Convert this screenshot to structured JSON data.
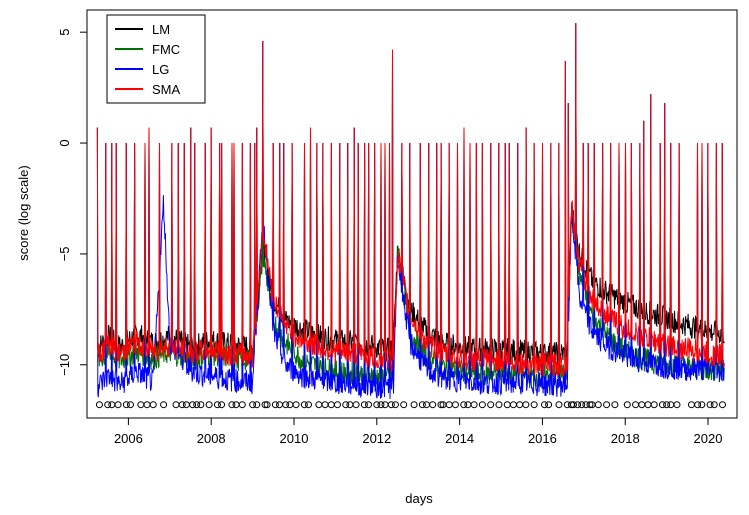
{
  "chart_data": {
    "type": "line",
    "title": "",
    "xlabel": "days",
    "ylabel": "score (log scale)",
    "xlim": [
      2005.0,
      2020.7
    ],
    "ylim": [
      -12.4,
      6.0
    ],
    "x_ticks": [
      2006,
      2008,
      2010,
      2012,
      2014,
      2016,
      2018,
      2020
    ],
    "x_tick_labels": [
      "2006",
      "2008",
      "2010",
      "2012",
      "2014",
      "2016",
      "2018",
      "2020"
    ],
    "y_ticks": [
      -10,
      -5,
      0,
      5
    ],
    "y_tick_labels": [
      "−10",
      "−5",
      "0",
      "5"
    ],
    "legend_position": "top-left",
    "series": [
      {
        "name": "LM",
        "color": "#000000",
        "points": [
          [
            2005.25,
            -9.3
          ],
          [
            2005.5,
            -8.7
          ],
          [
            2005.8,
            -9.2
          ],
          [
            2006.2,
            -8.6
          ],
          [
            2006.6,
            -9.0
          ],
          [
            2007.0,
            -8.7
          ],
          [
            2007.5,
            -9.2
          ],
          [
            2008.0,
            -8.9
          ],
          [
            2008.5,
            -9.1
          ],
          [
            2009.0,
            -9.2
          ],
          [
            2009.25,
            -4.5
          ],
          [
            2009.5,
            -7.0
          ],
          [
            2009.8,
            -8.0
          ],
          [
            2010.2,
            -8.4
          ],
          [
            2010.6,
            -8.7
          ],
          [
            2011.0,
            -8.9
          ],
          [
            2011.5,
            -9.0
          ],
          [
            2012.0,
            -9.2
          ],
          [
            2012.4,
            -9.4
          ],
          [
            2012.5,
            -4.8
          ],
          [
            2012.8,
            -7.5
          ],
          [
            2013.2,
            -8.5
          ],
          [
            2013.6,
            -9.0
          ],
          [
            2014.0,
            -9.2
          ],
          [
            2014.5,
            -9.3
          ],
          [
            2015.0,
            -9.3
          ],
          [
            2015.5,
            -9.4
          ],
          [
            2016.0,
            -9.5
          ],
          [
            2016.6,
            -9.5
          ],
          [
            2016.7,
            -3.0
          ],
          [
            2016.9,
            -5.0
          ],
          [
            2017.2,
            -6.2
          ],
          [
            2017.6,
            -6.8
          ],
          [
            2018.0,
            -7.2
          ],
          [
            2018.5,
            -7.6
          ],
          [
            2019.0,
            -7.9
          ],
          [
            2019.5,
            -8.2
          ],
          [
            2020.0,
            -8.5
          ],
          [
            2020.4,
            -8.6
          ]
        ]
      },
      {
        "name": "FMC",
        "color": "#007000",
        "points": [
          [
            2005.25,
            -9.8
          ],
          [
            2005.5,
            -9.5
          ],
          [
            2005.8,
            -9.8
          ],
          [
            2006.2,
            -9.4
          ],
          [
            2006.6,
            -9.7
          ],
          [
            2007.0,
            -9.4
          ],
          [
            2007.5,
            -9.8
          ],
          [
            2008.0,
            -9.5
          ],
          [
            2008.5,
            -9.7
          ],
          [
            2009.0,
            -9.8
          ],
          [
            2009.25,
            -5.0
          ],
          [
            2009.5,
            -8.0
          ],
          [
            2009.8,
            -9.0
          ],
          [
            2010.2,
            -9.8
          ],
          [
            2010.6,
            -10.1
          ],
          [
            2011.0,
            -10.3
          ],
          [
            2011.5,
            -10.4
          ],
          [
            2012.0,
            -10.5
          ],
          [
            2012.4,
            -10.6
          ],
          [
            2012.5,
            -5.0
          ],
          [
            2012.8,
            -8.5
          ],
          [
            2013.2,
            -9.6
          ],
          [
            2013.6,
            -10.1
          ],
          [
            2014.0,
            -10.3
          ],
          [
            2014.5,
            -10.4
          ],
          [
            2015.0,
            -10.4
          ],
          [
            2015.5,
            -10.5
          ],
          [
            2016.0,
            -10.5
          ],
          [
            2016.6,
            -10.5
          ],
          [
            2016.7,
            -3.0
          ],
          [
            2016.9,
            -6.0
          ],
          [
            2017.2,
            -7.8
          ],
          [
            2017.6,
            -8.8
          ],
          [
            2018.0,
            -9.4
          ],
          [
            2018.5,
            -9.8
          ],
          [
            2019.0,
            -10.0
          ],
          [
            2019.5,
            -10.1
          ],
          [
            2020.0,
            -10.2
          ],
          [
            2020.4,
            -10.2
          ]
        ]
      },
      {
        "name": "LG",
        "color": "#0000ff",
        "points": [
          [
            2005.25,
            -11.0
          ],
          [
            2005.5,
            -10.5
          ],
          [
            2005.8,
            -10.9
          ],
          [
            2006.2,
            -10.3
          ],
          [
            2006.6,
            -10.8
          ],
          [
            2006.85,
            -2.6
          ],
          [
            2007.0,
            -9.0
          ],
          [
            2007.5,
            -10.3
          ],
          [
            2008.0,
            -10.5
          ],
          [
            2008.5,
            -10.7
          ],
          [
            2009.0,
            -10.8
          ],
          [
            2009.25,
            -3.5
          ],
          [
            2009.5,
            -8.5
          ],
          [
            2009.8,
            -10.0
          ],
          [
            2010.2,
            -10.5
          ],
          [
            2010.6,
            -10.7
          ],
          [
            2011.0,
            -10.8
          ],
          [
            2011.5,
            -10.9
          ],
          [
            2012.0,
            -11.0
          ],
          [
            2012.4,
            -11.0
          ],
          [
            2012.5,
            -5.2
          ],
          [
            2012.8,
            -9.0
          ],
          [
            2013.2,
            -10.2
          ],
          [
            2013.6,
            -10.6
          ],
          [
            2014.0,
            -10.7
          ],
          [
            2014.5,
            -10.8
          ],
          [
            2015.0,
            -10.8
          ],
          [
            2015.5,
            -10.8
          ],
          [
            2016.0,
            -10.9
          ],
          [
            2016.6,
            -10.9
          ],
          [
            2016.7,
            -3.0
          ],
          [
            2016.9,
            -7.0
          ],
          [
            2017.2,
            -8.5
          ],
          [
            2017.6,
            -9.2
          ],
          [
            2018.0,
            -9.6
          ],
          [
            2018.5,
            -9.9
          ],
          [
            2019.0,
            -10.1
          ],
          [
            2019.5,
            -10.2
          ],
          [
            2020.0,
            -10.2
          ],
          [
            2020.4,
            -10.3
          ]
        ]
      },
      {
        "name": "SMA",
        "color": "#ff0000",
        "points": [
          [
            2005.25,
            -9.6
          ],
          [
            2005.5,
            -9.0
          ],
          [
            2005.8,
            -9.5
          ],
          [
            2006.2,
            -9.0
          ],
          [
            2006.6,
            -9.4
          ],
          [
            2007.0,
            -9.1
          ],
          [
            2007.5,
            -9.5
          ],
          [
            2008.0,
            -9.3
          ],
          [
            2008.5,
            -9.5
          ],
          [
            2009.0,
            -9.6
          ],
          [
            2009.25,
            -4.0
          ],
          [
            2009.5,
            -7.0
          ],
          [
            2009.8,
            -8.3
          ],
          [
            2010.2,
            -8.9
          ],
          [
            2010.6,
            -9.2
          ],
          [
            2011.0,
            -9.4
          ],
          [
            2011.5,
            -9.5
          ],
          [
            2012.0,
            -9.7
          ],
          [
            2012.4,
            -9.8
          ],
          [
            2012.5,
            -5.0
          ],
          [
            2012.8,
            -7.8
          ],
          [
            2013.2,
            -9.0
          ],
          [
            2013.6,
            -9.5
          ],
          [
            2014.0,
            -9.7
          ],
          [
            2014.5,
            -9.8
          ],
          [
            2015.0,
            -9.8
          ],
          [
            2015.5,
            -9.9
          ],
          [
            2016.0,
            -10.0
          ],
          [
            2016.6,
            -10.0
          ],
          [
            2016.7,
            -2.8
          ],
          [
            2016.9,
            -5.5
          ],
          [
            2017.2,
            -7.0
          ],
          [
            2017.6,
            -7.8
          ],
          [
            2018.0,
            -8.4
          ],
          [
            2018.5,
            -8.8
          ],
          [
            2019.0,
            -9.1
          ],
          [
            2019.5,
            -9.3
          ],
          [
            2020.0,
            -9.5
          ],
          [
            2020.4,
            -9.6
          ]
        ]
      }
    ],
    "spikes": {
      "series": "SMA",
      "values": [
        [
          2005.25,
          0.7
        ],
        [
          2005.45,
          0
        ],
        [
          2005.6,
          0
        ],
        [
          2005.7,
          0
        ],
        [
          2005.95,
          0
        ],
        [
          2006.15,
          0
        ],
        [
          2006.4,
          0
        ],
        [
          2006.5,
          0.7
        ],
        [
          2006.75,
          0
        ],
        [
          2007.05,
          0
        ],
        [
          2007.2,
          0
        ],
        [
          2007.35,
          0
        ],
        [
          2007.5,
          0.7
        ],
        [
          2007.6,
          0
        ],
        [
          2007.85,
          0
        ],
        [
          2008.0,
          0.7
        ],
        [
          2008.2,
          0
        ],
        [
          2008.25,
          0
        ],
        [
          2008.5,
          0
        ],
        [
          2008.55,
          0
        ],
        [
          2008.75,
          0
        ],
        [
          2008.95,
          0
        ],
        [
          2009.05,
          0
        ],
        [
          2009.1,
          0.7
        ],
        [
          2009.25,
          4.6
        ],
        [
          2009.5,
          0
        ],
        [
          2009.65,
          0
        ],
        [
          2009.75,
          0
        ],
        [
          2009.95,
          0
        ],
        [
          2010.25,
          0
        ],
        [
          2010.4,
          0.7
        ],
        [
          2010.55,
          0
        ],
        [
          2010.7,
          0
        ],
        [
          2010.9,
          0
        ],
        [
          2011.1,
          0
        ],
        [
          2011.3,
          0
        ],
        [
          2011.45,
          0.7
        ],
        [
          2011.55,
          0
        ],
        [
          2011.7,
          0
        ],
        [
          2011.8,
          0
        ],
        [
          2011.95,
          0
        ],
        [
          2012.1,
          0
        ],
        [
          2012.2,
          0
        ],
        [
          2012.3,
          0
        ],
        [
          2012.38,
          4.2
        ],
        [
          2012.6,
          0
        ],
        [
          2012.8,
          0
        ],
        [
          2013.05,
          0
        ],
        [
          2013.25,
          0
        ],
        [
          2013.45,
          0
        ],
        [
          2013.55,
          0
        ],
        [
          2013.75,
          0
        ],
        [
          2013.95,
          0
        ],
        [
          2014.1,
          0.7
        ],
        [
          2014.25,
          0
        ],
        [
          2014.4,
          0
        ],
        [
          2014.55,
          0
        ],
        [
          2014.75,
          0
        ],
        [
          2014.95,
          0
        ],
        [
          2015.1,
          0
        ],
        [
          2015.2,
          0
        ],
        [
          2015.4,
          0
        ],
        [
          2015.6,
          0.7
        ],
        [
          2015.8,
          0
        ],
        [
          2016.0,
          0
        ],
        [
          2016.2,
          0
        ],
        [
          2016.4,
          0
        ],
        [
          2016.55,
          3.7
        ],
        [
          2016.62,
          1.8
        ],
        [
          2016.8,
          5.4
        ],
        [
          2016.98,
          0
        ],
        [
          2017.1,
          0
        ],
        [
          2017.25,
          0
        ],
        [
          2017.45,
          0
        ],
        [
          2017.65,
          0
        ],
        [
          2017.85,
          0
        ],
        [
          2018.0,
          0
        ],
        [
          2018.15,
          0
        ],
        [
          2018.35,
          0
        ],
        [
          2018.45,
          1.0
        ],
        [
          2018.62,
          2.2
        ],
        [
          2018.85,
          0
        ],
        [
          2018.95,
          1.8
        ],
        [
          2019.1,
          0
        ],
        [
          2019.3,
          0
        ],
        [
          2019.75,
          0
        ],
        [
          2019.85,
          0
        ],
        [
          2020.0,
          0
        ],
        [
          2020.2,
          0
        ],
        [
          2020.35,
          0
        ]
      ]
    },
    "bottom_markers": {
      "y": -11.8,
      "symbol": "open-circle",
      "x": [
        2005.3,
        2005.5,
        2005.6,
        2005.75,
        2005.95,
        2006.05,
        2006.3,
        2006.45,
        2006.6,
        2006.85,
        2007.15,
        2007.3,
        2007.4,
        2007.55,
        2007.65,
        2007.75,
        2007.95,
        2008.15,
        2008.25,
        2008.5,
        2008.6,
        2008.75,
        2009.0,
        2009.1,
        2009.3,
        2009.35,
        2009.55,
        2009.65,
        2009.8,
        2009.9,
        2010.05,
        2010.25,
        2010.35,
        2010.6,
        2010.75,
        2010.9,
        2011.05,
        2011.25,
        2011.35,
        2011.5,
        2011.7,
        2011.8,
        2012.0,
        2012.1,
        2012.2,
        2012.35,
        2012.45,
        2012.65,
        2012.9,
        2013.1,
        2013.2,
        2013.35,
        2013.55,
        2013.6,
        2013.75,
        2013.9,
        2014.1,
        2014.2,
        2014.35,
        2014.55,
        2014.75,
        2014.95,
        2015.15,
        2015.3,
        2015.45,
        2015.6,
        2015.8,
        2016.05,
        2016.15,
        2016.4,
        2016.6,
        2016.7,
        2016.75,
        2016.85,
        2016.95,
        2017.05,
        2017.15,
        2017.2,
        2017.35,
        2017.55,
        2017.75,
        2018.05,
        2018.25,
        2018.4,
        2018.55,
        2018.7,
        2018.9,
        2019.0,
        2019.1,
        2019.25,
        2019.6,
        2019.75,
        2019.85,
        2020.05,
        2020.15,
        2020.35
      ]
    }
  }
}
